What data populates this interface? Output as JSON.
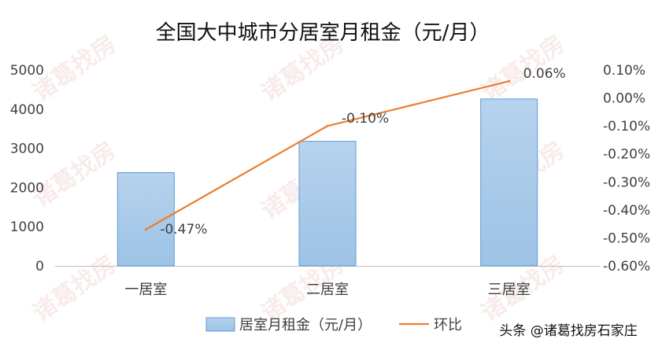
{
  "chart_data": {
    "type": "bar",
    "title": "全国大中城市分居室月租金（元/月）",
    "categories": [
      "一居室",
      "二居室",
      "三居室"
    ],
    "series": [
      {
        "name": "居室月租金（元/月）",
        "type": "bar",
        "axis": "left",
        "values": [
          2380,
          3180,
          4260
        ],
        "color": "#9DC3E6"
      },
      {
        "name": "环比",
        "type": "line",
        "axis": "right",
        "values": [
          -0.47,
          -0.1,
          0.06
        ],
        "data_labels": [
          "-0.47%",
          "-0.10%",
          "0.06%"
        ],
        "color": "#ED7D31"
      }
    ],
    "y_left": {
      "ylim": [
        0,
        5000
      ],
      "ticks": [
        0,
        1000,
        2000,
        3000,
        4000,
        5000
      ],
      "tick_labels": [
        "0",
        "1000",
        "2000",
        "3000",
        "4000",
        "5000"
      ]
    },
    "y_right": {
      "ylim": [
        -0.6,
        0.1
      ],
      "ticks": [
        -0.6,
        -0.5,
        -0.4,
        -0.3,
        -0.2,
        -0.1,
        0.0,
        0.1
      ],
      "tick_labels": [
        "-0.60%",
        "-0.50%",
        "-0.40%",
        "-0.30%",
        "-0.20%",
        "-0.10%",
        "0.00%",
        "0.10%"
      ]
    },
    "grid": false,
    "legend": "bottom"
  },
  "watermark": {
    "text": "诸葛找房",
    "color": "#F4DCDC"
  },
  "credit": "头条 @诸葛找房石家庄"
}
